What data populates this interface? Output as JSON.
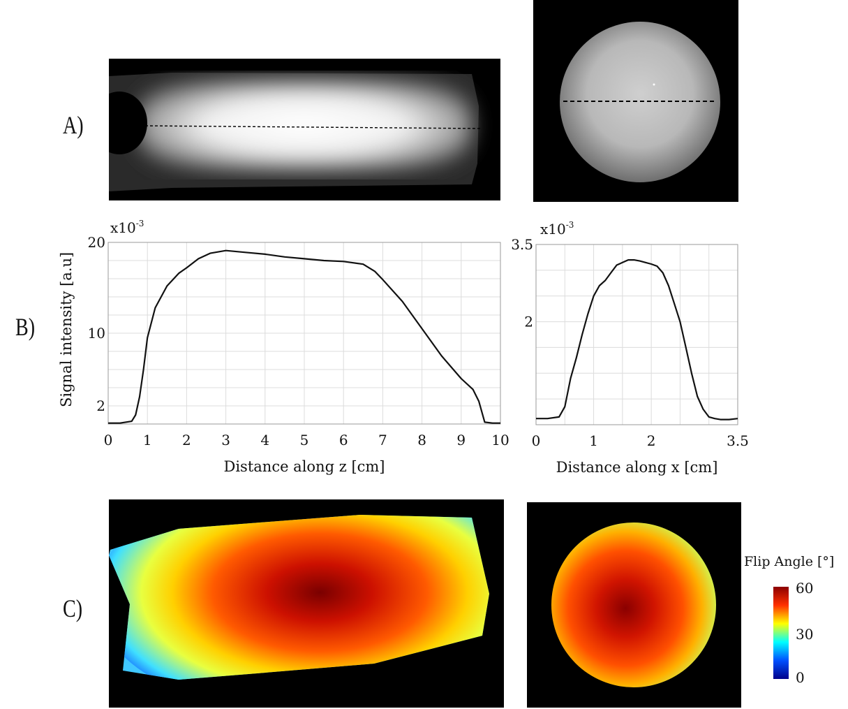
{
  "panels": {
    "a_label": "A)",
    "b_label": "B)",
    "c_label": "C)"
  },
  "colorbar": {
    "title": "Flip Angle [°]",
    "ticks": [
      "60",
      "30",
      "0"
    ],
    "min": 0,
    "max": 60,
    "colors": [
      "#00008b",
      "#0050ff",
      "#00ffff",
      "#ffff00",
      "#ff3000",
      "#8b0000"
    ]
  },
  "chart_data": [
    {
      "type": "line",
      "title": "",
      "xlabel": "Distance along z [cm]",
      "ylabel": "Signal intensity [a.u]",
      "exponent_base": "x10",
      "exponent_power": "-3",
      "xlim": [
        0,
        10
      ],
      "ylim": [
        0,
        20
      ],
      "xticks": [
        0,
        1,
        2,
        3,
        4,
        5,
        6,
        7,
        8,
        9,
        10
      ],
      "yticks": [
        2,
        10,
        20
      ],
      "x": [
        0,
        0.3,
        0.6,
        0.7,
        0.8,
        0.9,
        1.0,
        1.2,
        1.5,
        1.8,
        2.0,
        2.3,
        2.6,
        3.0,
        3.5,
        4.0,
        4.5,
        5.0,
        5.5,
        6.0,
        6.5,
        6.8,
        7.0,
        7.5,
        8.0,
        8.5,
        9.0,
        9.3,
        9.45,
        9.6,
        9.8,
        10.0
      ],
      "y": [
        0.1,
        0.1,
        0.3,
        1.0,
        3.0,
        6.0,
        9.5,
        12.8,
        15.2,
        16.6,
        17.2,
        18.2,
        18.8,
        19.1,
        18.9,
        18.7,
        18.4,
        18.2,
        18.0,
        17.9,
        17.6,
        16.8,
        15.9,
        13.5,
        10.5,
        7.5,
        5.0,
        3.8,
        2.5,
        0.2,
        0.1,
        0.1
      ],
      "grid": true
    },
    {
      "type": "line",
      "title": "",
      "xlabel": "Distance along x [cm]",
      "ylabel": "",
      "exponent_base": "x10",
      "exponent_power": "-3",
      "xlim": [
        0,
        3.5
      ],
      "ylim": [
        0,
        3.5
      ],
      "xticks": [
        0,
        1,
        2,
        3.5
      ],
      "xtick_labels": [
        "0",
        "1",
        "2",
        "3.5"
      ],
      "yticks": [
        2,
        3.5
      ],
      "ytick_labels": [
        "2",
        "3.5"
      ],
      "x": [
        0,
        0.2,
        0.4,
        0.5,
        0.6,
        0.7,
        0.8,
        0.9,
        1.0,
        1.1,
        1.2,
        1.3,
        1.4,
        1.5,
        1.6,
        1.7,
        1.8,
        1.9,
        2.0,
        2.1,
        2.2,
        2.3,
        2.4,
        2.5,
        2.6,
        2.7,
        2.8,
        2.9,
        3.0,
        3.1,
        3.2,
        3.35,
        3.5
      ],
      "y": [
        0.12,
        0.12,
        0.15,
        0.35,
        0.9,
        1.3,
        1.75,
        2.15,
        2.5,
        2.7,
        2.8,
        2.95,
        3.1,
        3.15,
        3.2,
        3.2,
        3.18,
        3.15,
        3.12,
        3.08,
        2.95,
        2.7,
        2.35,
        2.0,
        1.5,
        1.0,
        0.55,
        0.3,
        0.15,
        0.12,
        0.1,
        0.1,
        0.12
      ],
      "grid": true
    }
  ]
}
